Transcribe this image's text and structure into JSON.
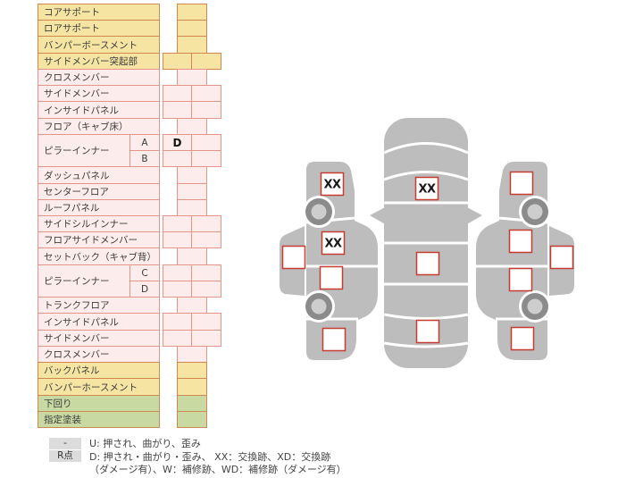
{
  "table": {
    "rows": [
      {
        "label": "コアサポート",
        "tone": "yellow",
        "cells": 1,
        "marks": [
          ""
        ]
      },
      {
        "label": "ロアサポート",
        "tone": "yellow",
        "cells": 1,
        "marks": [
          ""
        ]
      },
      {
        "label": "バンパーボースメント",
        "tone": "yellow",
        "cells": 1,
        "marks": [
          ""
        ]
      },
      {
        "label": "サイドメンバー突起部",
        "tone": "yellow",
        "cells": 2,
        "marks": [
          "",
          ""
        ]
      },
      {
        "label": "クロスメンバー",
        "tone": "pink",
        "cells": 1,
        "marks": [
          ""
        ]
      },
      {
        "label": "サイドメンバー",
        "tone": "pink",
        "cells": 2,
        "marks": [
          "",
          ""
        ]
      },
      {
        "label": "インサイドパネル",
        "tone": "pink",
        "cells": 2,
        "marks": [
          "",
          ""
        ]
      },
      {
        "label": "フロア（キャブ床）",
        "tone": "pink",
        "cells": 1,
        "marks": [
          ""
        ]
      },
      {
        "label": "ピラーインナー",
        "tone": "pink",
        "sub": "A",
        "group": "start",
        "cells": 2,
        "marks": [
          "D",
          ""
        ]
      },
      {
        "label": "",
        "tone": "pink",
        "sub": "B",
        "group": "end",
        "cells": 2,
        "marks": [
          "",
          ""
        ]
      },
      {
        "label": "ダッシュパネル",
        "tone": "pink",
        "cells": 1,
        "marks": [
          ""
        ]
      },
      {
        "label": "センターフロア",
        "tone": "pink",
        "cells": 1,
        "marks": [
          ""
        ]
      },
      {
        "label": "ルーフパネル",
        "tone": "pink",
        "cells": 1,
        "marks": [
          ""
        ]
      },
      {
        "label": "サイドシルインナー",
        "tone": "pink",
        "cells": 2,
        "marks": [
          "",
          ""
        ]
      },
      {
        "label": "フロアサイドメンバー",
        "tone": "pink",
        "cells": 2,
        "marks": [
          "",
          ""
        ]
      },
      {
        "label": "セットバック（キャブ背）",
        "tone": "pink",
        "cells": 1,
        "marks": [
          ""
        ]
      },
      {
        "label": "ピラーインナー",
        "tone": "pink",
        "sub": "C",
        "group": "start",
        "cells": 2,
        "marks": [
          "",
          ""
        ]
      },
      {
        "label": "",
        "tone": "pink",
        "sub": "D",
        "group": "end",
        "cells": 2,
        "marks": [
          "",
          ""
        ]
      },
      {
        "label": "トランクフロア",
        "tone": "pink",
        "cells": 1,
        "marks": [
          ""
        ]
      },
      {
        "label": "インサイドパネル",
        "tone": "pink",
        "cells": 2,
        "marks": [
          "",
          ""
        ]
      },
      {
        "label": "サイドメンバー",
        "tone": "pink",
        "cells": 2,
        "marks": [
          "",
          ""
        ]
      },
      {
        "label": "クロスメンバー",
        "tone": "pink",
        "cells": 1,
        "marks": [
          ""
        ]
      },
      {
        "label": "バックパネル",
        "tone": "yellow",
        "cells": 1,
        "marks": [
          ""
        ]
      },
      {
        "label": "バンパーホースメント",
        "tone": "yellow",
        "cells": 1,
        "marks": [
          ""
        ]
      },
      {
        "label": "下回り",
        "tone": "green",
        "cells": 1,
        "marks": [
          ""
        ]
      },
      {
        "label": "指定塗装",
        "tone": "green",
        "cells": 1,
        "marks": [
          ""
        ]
      }
    ]
  },
  "diagram": {
    "markers": [
      {
        "id": "left-front-fender",
        "value": "XX"
      },
      {
        "id": "left-front-door",
        "value": "XX"
      },
      {
        "id": "left-rear-door",
        "value": ""
      },
      {
        "id": "left-rear-fender",
        "value": ""
      },
      {
        "id": "left-side-roof",
        "value": ""
      },
      {
        "id": "hood",
        "value": "XX"
      },
      {
        "id": "roof",
        "value": ""
      },
      {
        "id": "trunk",
        "value": ""
      },
      {
        "id": "right-front-fender",
        "value": ""
      },
      {
        "id": "right-front-door",
        "value": ""
      },
      {
        "id": "right-rear-door",
        "value": ""
      },
      {
        "id": "right-rear-fender",
        "value": ""
      },
      {
        "id": "right-side-roof",
        "value": ""
      }
    ]
  },
  "legend": {
    "rows": [
      {
        "key": "-",
        "text": "U: 押され、曲がり、歪み"
      },
      {
        "key": "R点",
        "text": "D: 押され・曲がり・歪み、 XX：交換跡、XD：交換跡"
      },
      {
        "key": "",
        "text": "（ダメージ有）、W：補修跡、WD：補修跡（ダメージ有）"
      }
    ]
  },
  "colors": {
    "yellow_bg": "#f6e5a2",
    "yellow_border": "#d0884e",
    "pink_bg": "#fdecec",
    "pink_border": "#e5948a",
    "green_bg": "#c9d9a2",
    "green_border": "#cc8a52",
    "car_body": "#bdbdbd",
    "wheel_ring": "#8b8b8b",
    "wheel_hub": "#cdcdcd",
    "marker_border": "#c63c2e",
    "legend_key_bg": "#dcdcdc"
  }
}
